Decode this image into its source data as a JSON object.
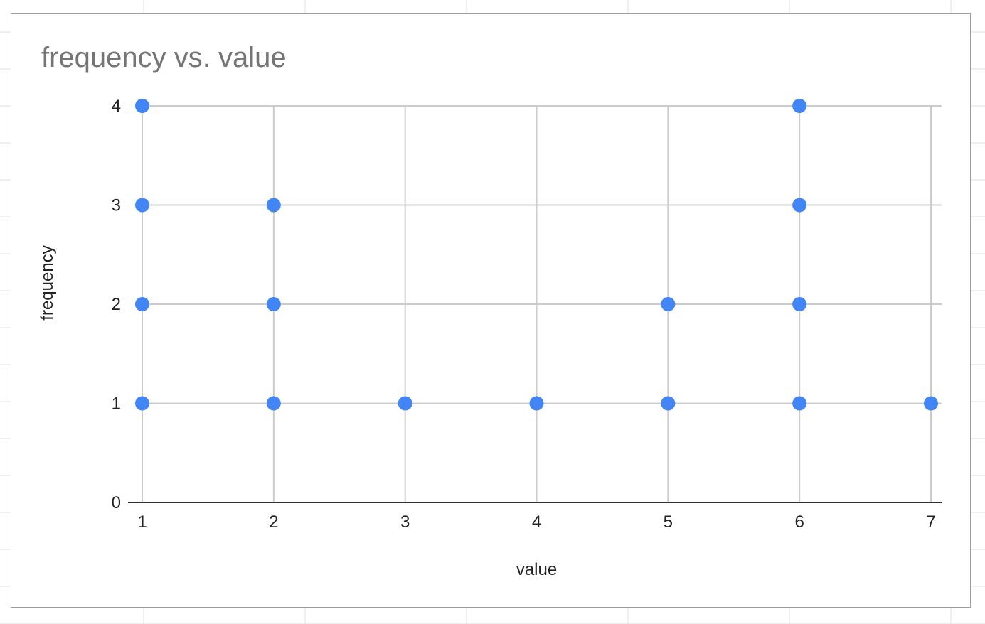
{
  "chart_data": {
    "type": "scatter",
    "title": "frequency vs. value",
    "xlabel": "value",
    "ylabel": "frequency",
    "xlim": [
      1,
      7
    ],
    "ylim": [
      0,
      4
    ],
    "x_ticks": [
      "1",
      "2",
      "3",
      "4",
      "5",
      "6",
      "7"
    ],
    "y_ticks": [
      "0",
      "1",
      "2",
      "3",
      "4"
    ],
    "grid": true,
    "marker_color": "#4285f4",
    "points": [
      {
        "x": 1,
        "y": 4
      },
      {
        "x": 1,
        "y": 3
      },
      {
        "x": 1,
        "y": 2
      },
      {
        "x": 1,
        "y": 1
      },
      {
        "x": 2,
        "y": 3
      },
      {
        "x": 2,
        "y": 2
      },
      {
        "x": 2,
        "y": 1
      },
      {
        "x": 3,
        "y": 1
      },
      {
        "x": 4,
        "y": 1
      },
      {
        "x": 5,
        "y": 2
      },
      {
        "x": 5,
        "y": 1
      },
      {
        "x": 6,
        "y": 4
      },
      {
        "x": 6,
        "y": 3
      },
      {
        "x": 6,
        "y": 2
      },
      {
        "x": 6,
        "y": 1
      },
      {
        "x": 7,
        "y": 1
      }
    ]
  }
}
